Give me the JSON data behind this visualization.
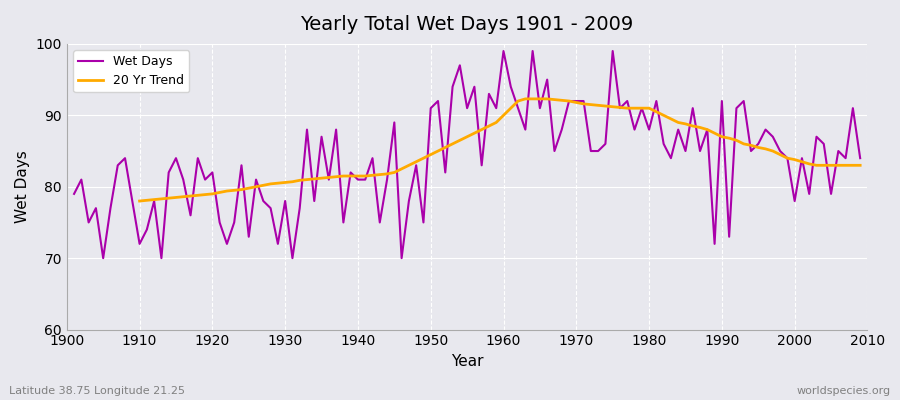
{
  "title": "Yearly Total Wet Days 1901 - 2009",
  "xlabel": "Year",
  "ylabel": "Wet Days",
  "lat_lon_label": "Latitude 38.75 Longitude 21.25",
  "source_label": "worldspecies.org",
  "ylim": [
    60,
    100
  ],
  "yticks": [
    60,
    70,
    80,
    90,
    100
  ],
  "bg_color": "#e8e8ee",
  "wet_days_color": "#aa00aa",
  "trend_color": "#ffaa00",
  "wet_days_linewidth": 1.5,
  "trend_linewidth": 2.0,
  "years": [
    1901,
    1902,
    1903,
    1904,
    1905,
    1906,
    1907,
    1908,
    1909,
    1910,
    1911,
    1912,
    1913,
    1914,
    1915,
    1916,
    1917,
    1918,
    1919,
    1920,
    1921,
    1922,
    1923,
    1924,
    1925,
    1926,
    1927,
    1928,
    1929,
    1930,
    1931,
    1932,
    1933,
    1934,
    1935,
    1936,
    1937,
    1938,
    1939,
    1940,
    1941,
    1942,
    1943,
    1944,
    1945,
    1946,
    1947,
    1948,
    1949,
    1950,
    1951,
    1952,
    1953,
    1954,
    1955,
    1956,
    1957,
    1958,
    1959,
    1960,
    1961,
    1962,
    1963,
    1964,
    1965,
    1966,
    1967,
    1968,
    1969,
    1970,
    1971,
    1972,
    1973,
    1974,
    1975,
    1976,
    1977,
    1978,
    1979,
    1980,
    1981,
    1982,
    1983,
    1984,
    1985,
    1986,
    1987,
    1988,
    1989,
    1990,
    1991,
    1992,
    1993,
    1994,
    1995,
    1996,
    1997,
    1998,
    1999,
    2000,
    2001,
    2002,
    2003,
    2004,
    2005,
    2006,
    2007,
    2008,
    2009
  ],
  "wet_days": [
    79,
    81,
    75,
    77,
    70,
    77,
    83,
    84,
    78,
    72,
    74,
    78,
    70,
    82,
    84,
    81,
    76,
    84,
    81,
    82,
    75,
    72,
    75,
    83,
    73,
    81,
    78,
    77,
    72,
    78,
    70,
    77,
    88,
    78,
    87,
    81,
    88,
    75,
    82,
    81,
    81,
    84,
    75,
    81,
    89,
    70,
    78,
    83,
    75,
    91,
    92,
    82,
    94,
    97,
    91,
    94,
    83,
    93,
    91,
    99,
    94,
    91,
    88,
    99,
    91,
    95,
    85,
    88,
    92,
    92,
    92,
    85,
    85,
    86,
    99,
    91,
    92,
    88,
    91,
    88,
    92,
    86,
    84,
    88,
    85,
    91,
    85,
    88,
    72,
    92,
    73,
    91,
    92,
    85,
    86,
    88,
    87,
    85,
    84,
    78,
    84,
    79,
    87,
    86,
    79,
    85,
    84,
    91,
    84
  ],
  "trend_years": [
    1910,
    1911,
    1912,
    1913,
    1914,
    1915,
    1916,
    1917,
    1918,
    1919,
    1920,
    1921,
    1922,
    1923,
    1924,
    1925,
    1926,
    1927,
    1928,
    1929,
    1930,
    1931,
    1932,
    1933,
    1934,
    1935,
    1936,
    1937,
    1938,
    1939,
    1940,
    1941,
    1942,
    1943,
    1944,
    1945,
    1946,
    1947,
    1948,
    1949,
    1950,
    1951,
    1952,
    1953,
    1954,
    1955,
    1956,
    1957,
    1958,
    1959,
    1960,
    1961,
    1962,
    1963,
    1964,
    1965,
    1966,
    1967,
    1968,
    1969,
    1970,
    1971,
    1972,
    1973,
    1974,
    1975,
    1976,
    1977,
    1978,
    1979,
    1980,
    1981,
    1982,
    1983,
    1984,
    1985,
    1986,
    1987,
    1988,
    1989,
    1990,
    1991,
    1992,
    1993,
    1994,
    1995,
    1996,
    1997,
    1998,
    1999,
    2000,
    2001,
    2002,
    2003,
    2004,
    2005,
    2006,
    2007,
    2008,
    2009
  ],
  "trend_values": [
    78.0,
    78.1,
    78.2,
    78.3,
    78.4,
    78.5,
    78.6,
    78.7,
    78.8,
    78.9,
    79.0,
    79.2,
    79.4,
    79.5,
    79.6,
    79.8,
    80.0,
    80.2,
    80.4,
    80.5,
    80.6,
    80.7,
    80.9,
    81.0,
    81.1,
    81.2,
    81.3,
    81.4,
    81.5,
    81.5,
    81.5,
    81.5,
    81.6,
    81.7,
    81.8,
    82.0,
    82.5,
    83.0,
    83.5,
    84.0,
    84.5,
    85.0,
    85.5,
    86.0,
    86.5,
    87.0,
    87.5,
    88.0,
    88.5,
    89.0,
    90.0,
    91.0,
    92.0,
    92.3,
    92.3,
    92.3,
    92.3,
    92.2,
    92.1,
    92.0,
    91.8,
    91.6,
    91.5,
    91.4,
    91.3,
    91.2,
    91.1,
    91.0,
    91.0,
    91.0,
    91.0,
    90.5,
    90.0,
    89.5,
    89.0,
    88.8,
    88.5,
    88.3,
    88.0,
    87.5,
    87.0,
    86.8,
    86.5,
    86.0,
    85.8,
    85.5,
    85.3,
    85.0,
    84.5,
    84.0,
    83.8,
    83.5,
    83.2,
    83.0,
    83.0,
    83.0,
    83.0,
    83.0,
    83.0,
    83.0
  ]
}
